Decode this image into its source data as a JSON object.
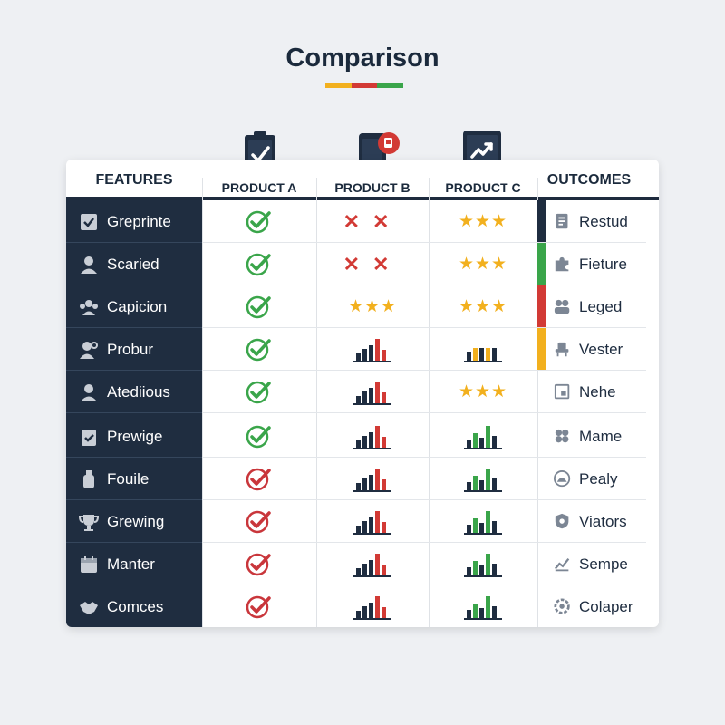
{
  "title": "Comparison",
  "title_underline_colors": [
    "#f2b01e",
    "#d23a35",
    "#3aa54a"
  ],
  "headers": {
    "features": "FEATURES",
    "product_a": "PRODUCT A",
    "product_b": "PRODUCT B",
    "product_c": "PRODUCT C",
    "outcomes": "OUTCOMES"
  },
  "header_icons": [
    "clipboard-check-icon",
    "phone-alert-icon",
    "tablet-chart-icon"
  ],
  "colors": {
    "dark": "#1f2d40",
    "check_green": "#3aa54a",
    "check_red": "#c9363b",
    "star": "#f2b01e",
    "cross": "#d23a35",
    "bar_dark": "#1f2d40",
    "bar_red": "#d23a35",
    "bar_yellow": "#f2b01e",
    "bar_green": "#3aa54a"
  },
  "rows": [
    {
      "feature": "Greprinte",
      "feature_icon": "checkbox-icon",
      "a": "check-green",
      "b": "cross",
      "c": "stars",
      "outcome": "Restud",
      "outcome_icon": "document-icon",
      "accent": "#1f2d40"
    },
    {
      "feature": "Scaried",
      "feature_icon": "person-icon",
      "a": "check-green",
      "b": "cross",
      "c": "stars",
      "outcome": "Fieture",
      "outcome_icon": "puzzle-icon",
      "accent": "#3aa54a"
    },
    {
      "feature": "Capicion",
      "feature_icon": "group-icon",
      "a": "check-green",
      "b": "stars",
      "c": "stars",
      "outcome": "Leged",
      "outcome_icon": "people-icon",
      "accent": "#d23a35"
    },
    {
      "feature": "Probur",
      "feature_icon": "person-gear-icon",
      "a": "check-green",
      "b": "bars-red",
      "c": "bars-yellow",
      "outcome": "Vester",
      "outcome_icon": "chair-icon",
      "accent": "#f2b01e"
    },
    {
      "feature": "Atediious",
      "feature_icon": "person-icon",
      "a": "check-green",
      "b": "bars-red",
      "c": "stars",
      "outcome": "Nehe",
      "outcome_icon": "tile-icon",
      "accent": ""
    },
    {
      "feature": "Prewige",
      "feature_icon": "clipboard-icon",
      "a": "check-green",
      "b": "bars-red",
      "c": "bars-green",
      "outcome": "Mame",
      "outcome_icon": "cluster-icon",
      "accent": ""
    },
    {
      "feature": "Fouile",
      "feature_icon": "bottle-icon",
      "a": "check-red",
      "b": "bars-red",
      "c": "bars-green",
      "outcome": "Pealy",
      "outcome_icon": "face-icon",
      "accent": ""
    },
    {
      "feature": "Grewing",
      "feature_icon": "trophy-icon",
      "a": "check-red",
      "b": "bars-red",
      "c": "bars-green",
      "outcome": "Viators",
      "outcome_icon": "shield-icon",
      "accent": ""
    },
    {
      "feature": "Manter",
      "feature_icon": "calendar-icon",
      "a": "check-red",
      "b": "bars-red",
      "c": "bars-green",
      "outcome": "Sempe",
      "outcome_icon": "trend-chart-icon",
      "accent": ""
    },
    {
      "feature": "Comces",
      "feature_icon": "handshake-icon",
      "a": "check-red",
      "b": "bars-red",
      "c": "bars-green",
      "outcome": "Colaper",
      "outcome_icon": "gear-icon",
      "accent": ""
    }
  ]
}
